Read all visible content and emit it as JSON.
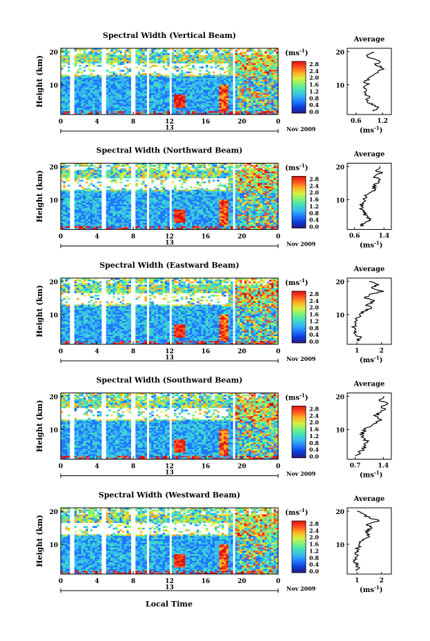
{
  "figure": {
    "x_axis_title": "Local Time",
    "y_axis_title": "Height (km)",
    "date_label": "Nov 2009",
    "day_label": "13",
    "x_ticks": [
      "0",
      "4",
      "8",
      "12",
      "16",
      "20",
      "0"
    ],
    "y_ticks": [
      "20",
      "10"
    ],
    "colorbar_unit": "(ms",
    "colorbar_unit_exp": "-1",
    "colorbar_unit_close": ")",
    "colorbar_ticks": [
      "2.8",
      "2.4",
      "2.0",
      "1.6",
      "1.2",
      "0.8",
      "0.4",
      "0.0"
    ],
    "average_title": "Average",
    "average_unit": "(ms",
    "average_unit_exp": "-1",
    "average_unit_close": ")"
  },
  "colors": {
    "gap": "#ffffff",
    "colormap": [
      "#2a1a80",
      "#0a3cd8",
      "#1f78ff",
      "#35b8f0",
      "#40e0c0",
      "#7cf27a",
      "#d8f040",
      "#ffb020",
      "#ff5020",
      "#e01010"
    ]
  },
  "chart_data": [
    {
      "type": "heatmap",
      "title": "Spectral Width (Vertical Beam)",
      "xlim": [
        0,
        24
      ],
      "ylim": [
        1,
        21
      ],
      "colorbar_range": [
        0.0,
        3.0
      ],
      "data_gaps_hours": [
        [
          1.1,
          1.5
        ],
        [
          4.4,
          4.9
        ],
        [
          7.7,
          8.2
        ],
        [
          9.5,
          9.8
        ],
        [
          12.0,
          12.3
        ],
        [
          19.0,
          19.3
        ]
      ],
      "average_profile": {
        "xlabel_ticks": [
          "0.6",
          "1.2"
        ],
        "xlim": [
          0.4,
          1.4
        ],
        "height_km": [
          2,
          3,
          4,
          5,
          6,
          7,
          8,
          9,
          10,
          11,
          12,
          13,
          14,
          15,
          16,
          17,
          18,
          19,
          20
        ],
        "values": [
          1.0,
          1.1,
          0.95,
          0.85,
          0.9,
          0.8,
          0.82,
          0.78,
          0.85,
          0.8,
          0.88,
          1.0,
          1.1,
          1.2,
          1.05,
          1.15,
          0.95,
          0.85,
          1.0
        ]
      }
    },
    {
      "type": "heatmap",
      "title": "Spectral Width (Northward Beam)",
      "xlim": [
        0,
        24
      ],
      "ylim": [
        1,
        21
      ],
      "colorbar_range": [
        0.0,
        3.0
      ],
      "data_gaps_hours": [
        [
          1.1,
          1.5
        ],
        [
          4.4,
          4.9
        ],
        [
          7.7,
          8.2
        ],
        [
          9.5,
          9.8
        ],
        [
          12.0,
          12.3
        ],
        [
          19.0,
          19.3
        ]
      ],
      "average_profile": {
        "xlabel_ticks": [
          "0.6",
          "1.4"
        ],
        "xlim": [
          0.4,
          1.6
        ],
        "height_km": [
          2,
          3,
          4,
          5,
          6,
          7,
          8,
          9,
          10,
          11,
          12,
          13,
          14,
          15,
          16,
          17,
          18,
          19,
          20
        ],
        "values": [
          0.75,
          0.9,
          1.0,
          0.95,
          0.85,
          0.8,
          0.78,
          0.82,
          0.85,
          0.9,
          1.0,
          1.15,
          1.1,
          1.25,
          1.3,
          1.15,
          1.35,
          1.2,
          1.3
        ]
      }
    },
    {
      "type": "heatmap",
      "title": "Spectral Width (Eastward Beam)",
      "xlim": [
        0,
        24
      ],
      "ylim": [
        1,
        21
      ],
      "colorbar_range": [
        0.0,
        3.0
      ],
      "data_gaps_hours": [
        [
          1.1,
          1.5
        ],
        [
          4.4,
          4.9
        ],
        [
          7.7,
          8.2
        ],
        [
          9.5,
          9.8
        ],
        [
          12.0,
          12.3
        ],
        [
          19.0,
          19.3
        ]
      ],
      "average_profile": {
        "xlabel_ticks": [
          "1",
          "2"
        ],
        "xlim": [
          0.6,
          2.4
        ],
        "height_km": [
          2,
          3,
          4,
          5,
          6,
          7,
          8,
          9,
          10,
          11,
          12,
          13,
          14,
          15,
          16,
          17,
          18,
          19,
          20
        ],
        "values": [
          1.0,
          1.15,
          0.95,
          0.9,
          0.88,
          0.92,
          0.95,
          1.0,
          1.1,
          1.3,
          1.6,
          1.4,
          1.7,
          1.3,
          1.5,
          2.1,
          1.6,
          1.9,
          1.5
        ]
      }
    },
    {
      "type": "heatmap",
      "title": "Spectral Width (Southward Beam)",
      "xlim": [
        0,
        24
      ],
      "ylim": [
        1,
        21
      ],
      "colorbar_range": [
        0.0,
        3.0
      ],
      "data_gaps_hours": [
        [
          1.1,
          1.5
        ],
        [
          4.4,
          4.9
        ],
        [
          7.7,
          8.2
        ],
        [
          9.5,
          9.8
        ],
        [
          12.0,
          12.3
        ],
        [
          19.0,
          19.3
        ]
      ],
      "average_profile": {
        "xlabel_ticks": [
          "0.7",
          "1.4"
        ],
        "xlim": [
          0.5,
          1.6
        ],
        "height_km": [
          2,
          3,
          4,
          5,
          6,
          7,
          8,
          9,
          10,
          11,
          12,
          13,
          14,
          15,
          16,
          17,
          18,
          19,
          20
        ],
        "values": [
          0.7,
          0.8,
          0.9,
          0.95,
          1.0,
          0.95,
          0.9,
          0.85,
          0.95,
          1.1,
          1.25,
          1.35,
          1.2,
          1.3,
          1.45,
          1.35,
          1.5,
          1.3,
          1.4
        ]
      }
    },
    {
      "type": "heatmap",
      "title": "Spectral Width (Westward Beam)",
      "xlim": [
        0,
        24
      ],
      "ylim": [
        1,
        21
      ],
      "colorbar_range": [
        0.0,
        3.0
      ],
      "data_gaps_hours": [
        [
          1.1,
          1.5
        ],
        [
          4.4,
          4.9
        ],
        [
          7.7,
          8.2
        ],
        [
          9.5,
          9.8
        ],
        [
          12.0,
          12.3
        ],
        [
          19.0,
          19.3
        ]
      ],
      "average_profile": {
        "xlabel_ticks": [
          "1",
          "2"
        ],
        "xlim": [
          0.6,
          2.4
        ],
        "height_km": [
          2,
          3,
          4,
          5,
          6,
          7,
          8,
          9,
          10,
          11,
          12,
          13,
          14,
          15,
          16,
          17,
          18,
          19,
          20
        ],
        "values": [
          1.0,
          1.1,
          0.95,
          0.9,
          0.92,
          0.95,
          1.0,
          1.05,
          1.1,
          1.2,
          1.4,
          1.5,
          1.35,
          1.6,
          1.4,
          1.9,
          1.5,
          1.3,
          1.0
        ]
      }
    }
  ]
}
